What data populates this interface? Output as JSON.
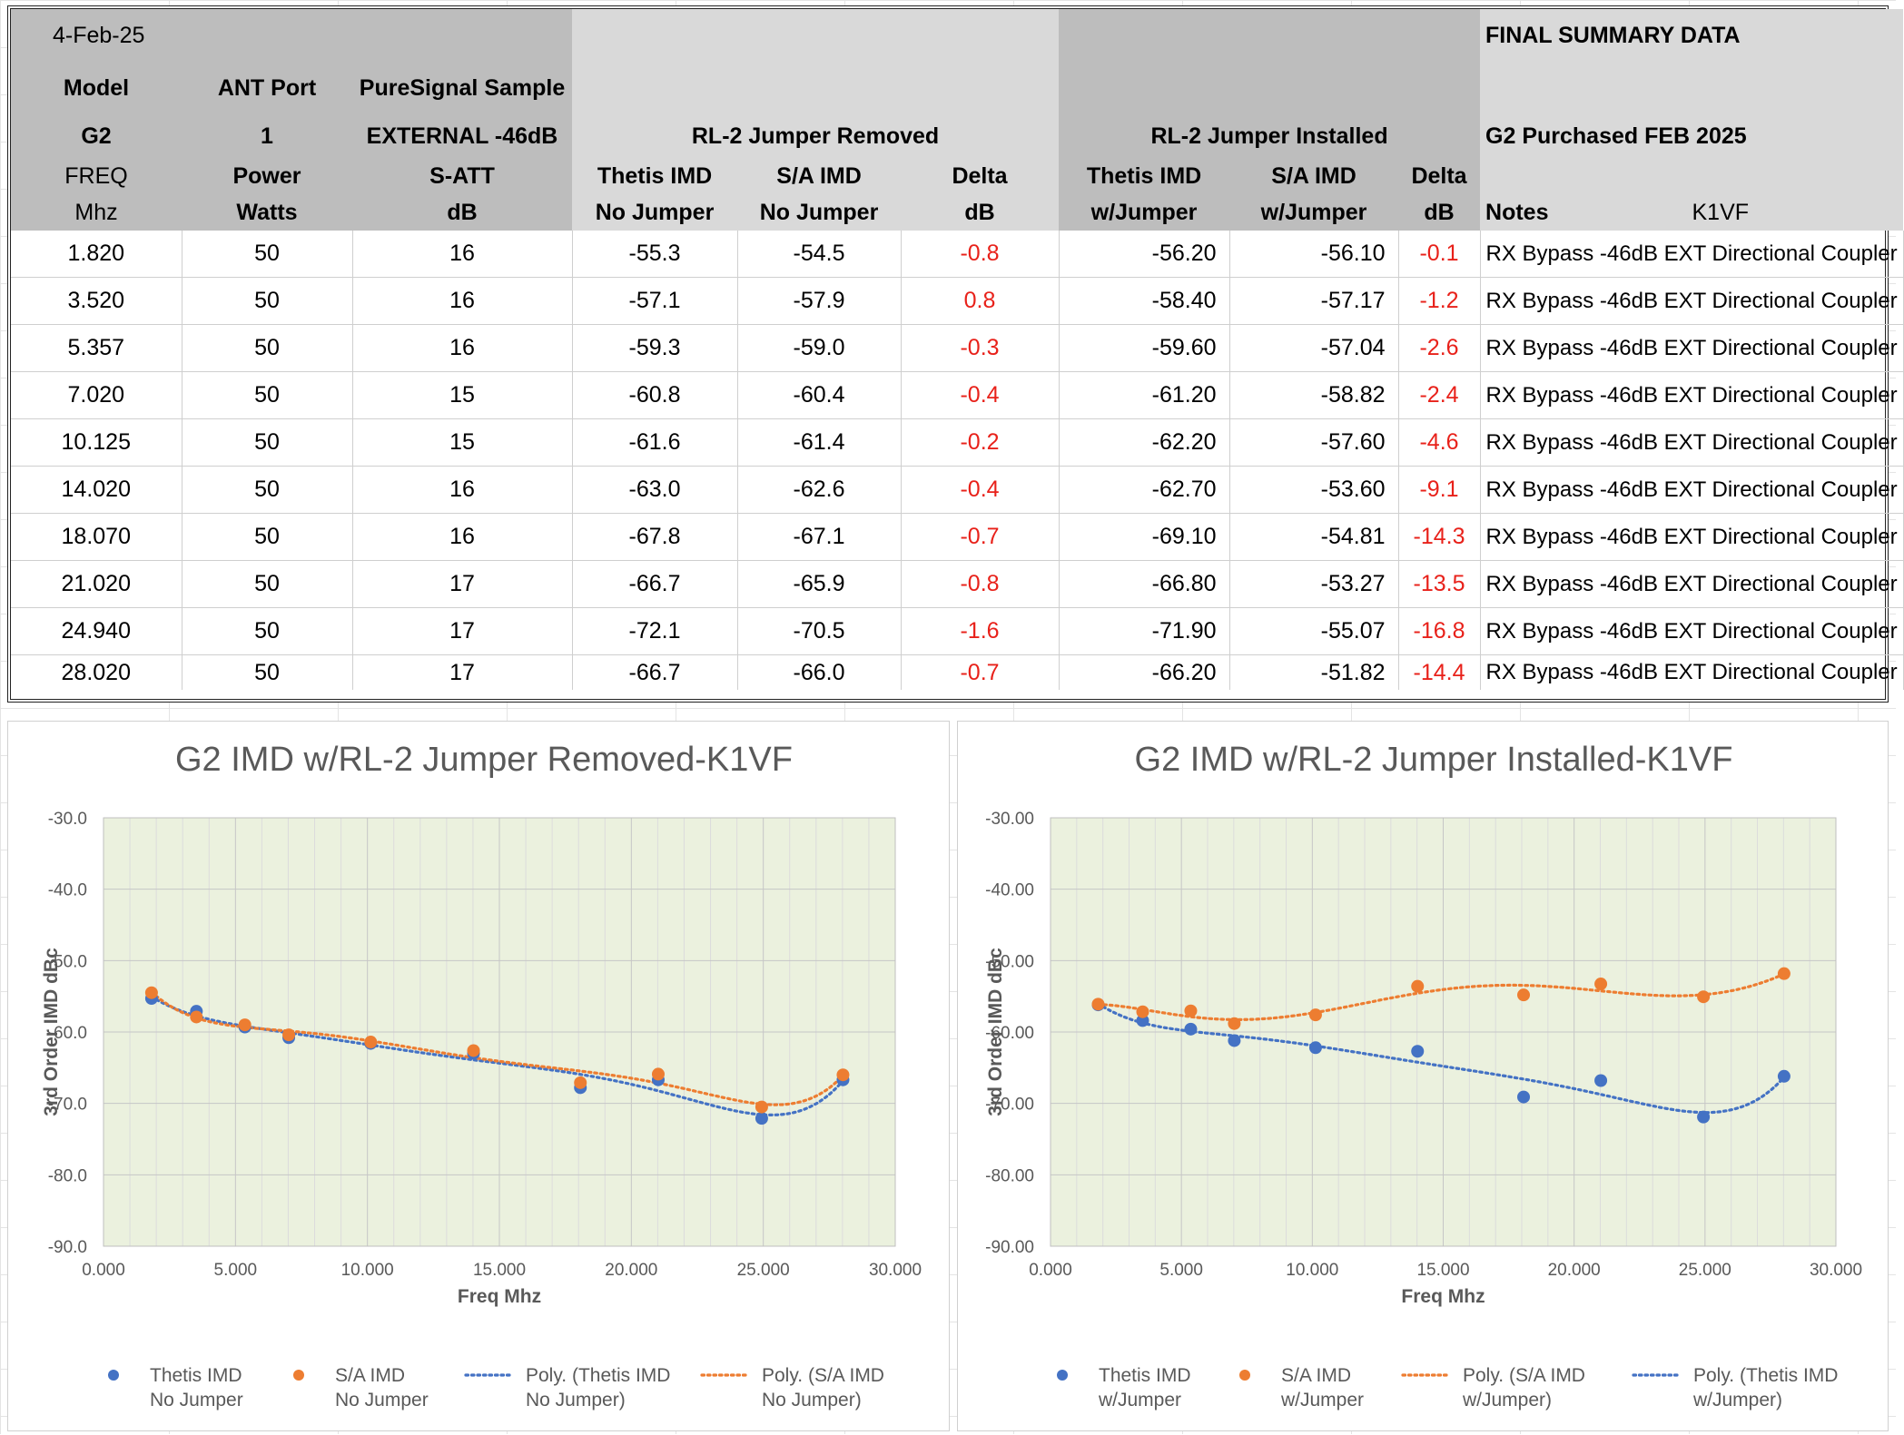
{
  "header": {
    "date": "4-Feb-25",
    "final_summary": "FINAL SUMMARY DATA",
    "model_label": "Model",
    "model_value": "G2",
    "ant_label": "ANT Port",
    "ant_value": "1",
    "ps_label": "PureSignal Sample",
    "ps_value": "EXTERNAL -46dB",
    "removed_group": "RL-2 Jumper Removed",
    "installed_group": "RL-2 Jumper Installed",
    "purchased": "G2 Purchased FEB 2025",
    "col_freq": [
      "FREQ",
      "Mhz"
    ],
    "col_power": [
      "Power",
      "Watts"
    ],
    "col_satt": [
      "S-ATT",
      "dB"
    ],
    "col_thetis_nj": [
      "Thetis IMD",
      "No Jumper"
    ],
    "col_sa_nj": [
      "S/A IMD",
      "No Jumper"
    ],
    "col_delta_nj": [
      "Delta",
      "dB"
    ],
    "col_thetis_wj": [
      "Thetis IMD",
      "w/Jumper"
    ],
    "col_sa_wj": [
      "S/A  IMD",
      "w/Jumper"
    ],
    "col_delta_wj": [
      "Delta",
      "dB"
    ],
    "col_notes": "Notes",
    "col_callsign": "K1VF"
  },
  "rows": [
    {
      "freq": "1.820",
      "power": "50",
      "satt": "16",
      "thetis_nj": "-55.3",
      "sa_nj": "-54.5",
      "delta_nj": "-0.8",
      "thetis_wj": "-56.20",
      "sa_wj": "-56.10",
      "delta_wj": "-0.1",
      "notes": "RX Bypass -46dB EXT Directional Coupler"
    },
    {
      "freq": "3.520",
      "power": "50",
      "satt": "16",
      "thetis_nj": "-57.1",
      "sa_nj": "-57.9",
      "delta_nj": "0.8",
      "thetis_wj": "-58.40",
      "sa_wj": "-57.17",
      "delta_wj": "-1.2",
      "notes": "RX Bypass -46dB EXT Directional Coupler"
    },
    {
      "freq": "5.357",
      "power": "50",
      "satt": "16",
      "thetis_nj": "-59.3",
      "sa_nj": "-59.0",
      "delta_nj": "-0.3",
      "thetis_wj": "-59.60",
      "sa_wj": "-57.04",
      "delta_wj": "-2.6",
      "notes": "RX Bypass -46dB EXT Directional Coupler"
    },
    {
      "freq": "7.020",
      "power": "50",
      "satt": "15",
      "thetis_nj": "-60.8",
      "sa_nj": "-60.4",
      "delta_nj": "-0.4",
      "thetis_wj": "-61.20",
      "sa_wj": "-58.82",
      "delta_wj": "-2.4",
      "notes": "RX Bypass -46dB EXT Directional Coupler"
    },
    {
      "freq": "10.125",
      "power": "50",
      "satt": "15",
      "thetis_nj": "-61.6",
      "sa_nj": "-61.4",
      "delta_nj": "-0.2",
      "thetis_wj": "-62.20",
      "sa_wj": "-57.60",
      "delta_wj": "-4.6",
      "notes": "RX Bypass -46dB EXT Directional Coupler"
    },
    {
      "freq": "14.020",
      "power": "50",
      "satt": "16",
      "thetis_nj": "-63.0",
      "sa_nj": "-62.6",
      "delta_nj": "-0.4",
      "thetis_wj": "-62.70",
      "sa_wj": "-53.60",
      "delta_wj": "-9.1",
      "notes": "RX Bypass -46dB EXT Directional Coupler"
    },
    {
      "freq": "18.070",
      "power": "50",
      "satt": "16",
      "thetis_nj": "-67.8",
      "sa_nj": "-67.1",
      "delta_nj": "-0.7",
      "thetis_wj": "-69.10",
      "sa_wj": "-54.81",
      "delta_wj": "-14.3",
      "notes": "RX Bypass -46dB EXT Directional Coupler"
    },
    {
      "freq": "21.020",
      "power": "50",
      "satt": "17",
      "thetis_nj": "-66.7",
      "sa_nj": "-65.9",
      "delta_nj": "-0.8",
      "thetis_wj": "-66.80",
      "sa_wj": "-53.27",
      "delta_wj": "-13.5",
      "notes": "RX Bypass -46dB EXT Directional Coupler"
    },
    {
      "freq": "24.940",
      "power": "50",
      "satt": "17",
      "thetis_nj": "-72.1",
      "sa_nj": "-70.5",
      "delta_nj": "-1.6",
      "thetis_wj": "-71.90",
      "sa_wj": "-55.07",
      "delta_wj": "-16.8",
      "notes": "RX Bypass -46dB EXT Directional Coupler"
    },
    {
      "freq": "28.020",
      "power": "50",
      "satt": "17",
      "thetis_nj": "-66.7",
      "sa_nj": "-66.0",
      "delta_nj": "-0.7",
      "thetis_wj": "-66.20",
      "sa_wj": "-51.82",
      "delta_wj": "-14.4",
      "notes": "RX Bypass -46dB EXT Directional Coupler"
    }
  ],
  "colors": {
    "thetis": "#4472c4",
    "sa": "#ed7d31",
    "plot_bg": "#ebf1de",
    "delta": "#e8211a"
  },
  "chart_data": [
    {
      "type": "scatter",
      "title": "G2 IMD w/RL-2 Jumper Removed-K1VF",
      "xlabel": "Freq Mhz",
      "ylabel": "3rd Order IMD dBc",
      "xlim": [
        0,
        30
      ],
      "ylim": [
        -90,
        -30
      ],
      "xticks": [
        "0.000",
        "5.000",
        "10.000",
        "15.000",
        "20.000",
        "25.000",
        "30.000"
      ],
      "yticks": [
        "-30.0",
        "-40.0",
        "-50.0",
        "-60.0",
        "-70.0",
        "-80.0",
        "-90.0"
      ],
      "x": [
        1.82,
        3.52,
        5.357,
        7.02,
        10.125,
        14.02,
        18.07,
        21.02,
        24.94,
        28.02
      ],
      "series": [
        {
          "name": "Thetis IMD No Jumper",
          "color": "#4472c4",
          "values": [
            -55.3,
            -57.1,
            -59.3,
            -60.8,
            -61.6,
            -63.0,
            -67.8,
            -66.7,
            -72.1,
            -66.7
          ]
        },
        {
          "name": "S/A IMD No Jumper",
          "color": "#ed7d31",
          "values": [
            -54.5,
            -57.9,
            -59.0,
            -60.4,
            -61.4,
            -62.6,
            -67.1,
            -65.9,
            -70.5,
            -66.0
          ]
        }
      ],
      "legend": [
        {
          "label": [
            "Thetis IMD",
            "No Jumper"
          ],
          "kind": "marker",
          "color": "#4472c4"
        },
        {
          "label": [
            "S/A IMD",
            "No Jumper"
          ],
          "kind": "marker",
          "color": "#ed7d31"
        },
        {
          "label": [
            "Poly. (Thetis IMD",
            "No Jumper)"
          ],
          "kind": "line",
          "color": "#4472c4"
        },
        {
          "label": [
            "Poly. (S/A IMD",
            "No Jumper)"
          ],
          "kind": "line",
          "color": "#ed7d31"
        }
      ],
      "legend_position": "bottom",
      "trendline": "polynomial",
      "grid": true
    },
    {
      "type": "scatter",
      "title": "G2 IMD w/RL-2 Jumper Installed-K1VF",
      "xlabel": "Freq Mhz",
      "ylabel": "3rd Order IMD dBc",
      "xlim": [
        0,
        30
      ],
      "ylim": [
        -90,
        -30
      ],
      "xticks": [
        "0.000",
        "5.000",
        "10.000",
        "15.000",
        "20.000",
        "25.000",
        "30.000"
      ],
      "yticks": [
        "-30.00",
        "-40.00",
        "-50.00",
        "-60.00",
        "-70.00",
        "-80.00",
        "-90.00"
      ],
      "x": [
        1.82,
        3.52,
        5.357,
        7.02,
        10.125,
        14.02,
        18.07,
        21.02,
        24.94,
        28.02
      ],
      "series": [
        {
          "name": "Thetis IMD w/Jumper",
          "color": "#4472c4",
          "values": [
            -56.2,
            -58.4,
            -59.6,
            -61.2,
            -62.2,
            -62.7,
            -69.1,
            -66.8,
            -71.9,
            -66.2
          ]
        },
        {
          "name": "S/A  IMD w/Jumper",
          "color": "#ed7d31",
          "values": [
            -56.1,
            -57.17,
            -57.04,
            -58.82,
            -57.6,
            -53.6,
            -54.81,
            -53.27,
            -55.07,
            -51.82
          ]
        }
      ],
      "legend": [
        {
          "label": [
            "Thetis IMD",
            "w/Jumper"
          ],
          "kind": "marker",
          "color": "#4472c4"
        },
        {
          "label": [
            "S/A  IMD",
            "w/Jumper"
          ],
          "kind": "marker",
          "color": "#ed7d31"
        },
        {
          "label": [
            "Poly. (S/A  IMD",
            "w/Jumper)"
          ],
          "kind": "line",
          "color": "#ed7d31"
        },
        {
          "label": [
            "Poly. (Thetis IMD",
            "w/Jumper)"
          ],
          "kind": "line",
          "color": "#4472c4"
        }
      ],
      "legend_position": "bottom",
      "trendline": "polynomial",
      "grid": true
    }
  ]
}
